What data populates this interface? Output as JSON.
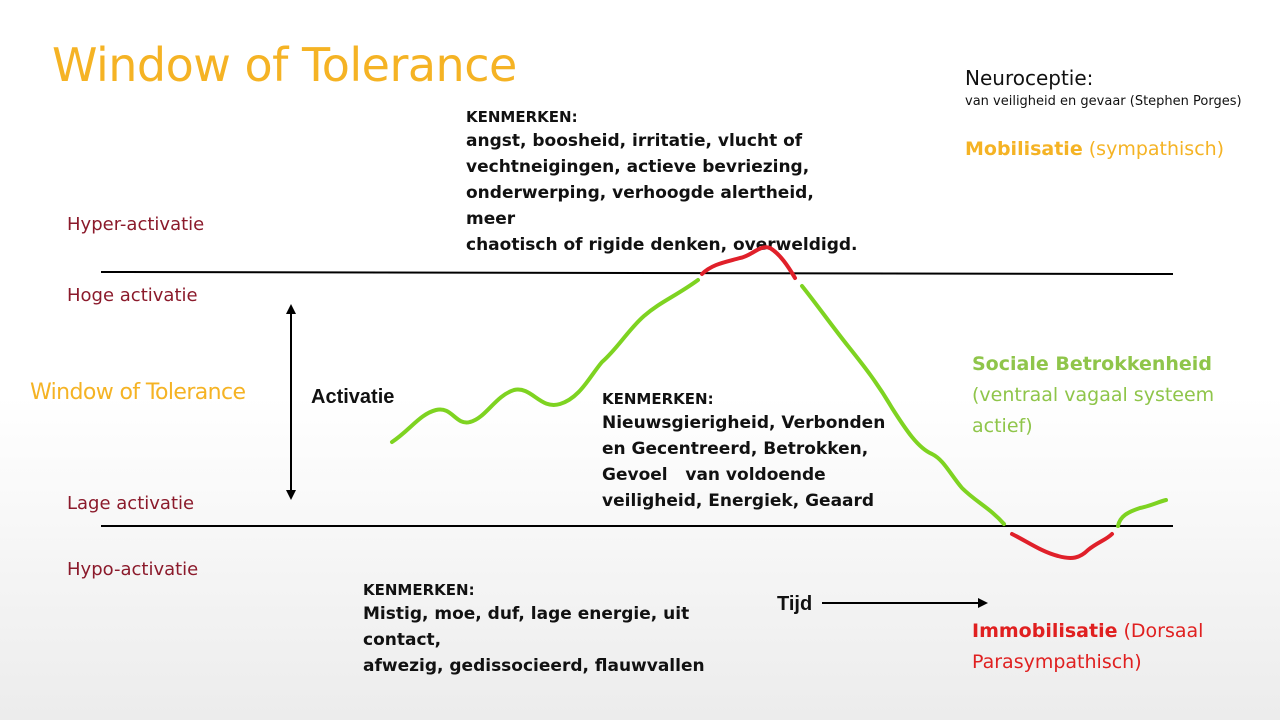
{
  "title": "Window of Tolerance",
  "levels": {
    "hyper": "Hyper-activatie",
    "hoge": "Hoge activatie",
    "window": "Window of Tolerance",
    "lage": "Lage activatie",
    "hypo": "Hypo-activatie"
  },
  "axis": {
    "activatie": "Activatie",
    "tijd": "Tijd"
  },
  "kenmerken_top": {
    "heading": "KENMERKEN:",
    "lines": [
      "angst, boosheid, irritatie, vlucht of",
      "vechtneigingen, actieve bevriezing,",
      "onderwerping, verhoogde alertheid, meer",
      "chaotisch of rigide denken, overweldigd."
    ]
  },
  "kenmerken_mid": {
    "heading": "KENMERKEN:",
    "lines": [
      "Nieuwsgierigheid, Verbonden",
      "en Gecentreerd, Betrokken,",
      "Gevoel   van voldoende",
      "veiligheid, Energiek, Geaard"
    ]
  },
  "kenmerken_low": {
    "heading": "KENMERKEN:",
    "lines": [
      "Mistig, moe, duf, lage energie, uit contact,",
      "afwezig, gedissocieerd, flauwvallen"
    ]
  },
  "neuroceptie": {
    "title": "Neuroceptie:",
    "subtitle": "van veiligheid en gevaar (Stephen Porges)"
  },
  "mobilisatie": {
    "bold": "Mobilisatie",
    "rest": " (sympathisch)"
  },
  "sociaal": {
    "bold": "Sociale Betrokkenheid",
    "line2": "(ventraal vagaal systeem",
    "line3": "actief)"
  },
  "immobilisatie": {
    "bold": "Immobilisatie",
    "rest": " (Dorsaal",
    "line2": "Parasympathisch)"
  },
  "colors": {
    "title": "#f5b324",
    "level": "#8b1a2b",
    "green": "#7ed321",
    "red": "#e0202a",
    "sociaal": "#8fc54a",
    "immob": "#e02020"
  }
}
